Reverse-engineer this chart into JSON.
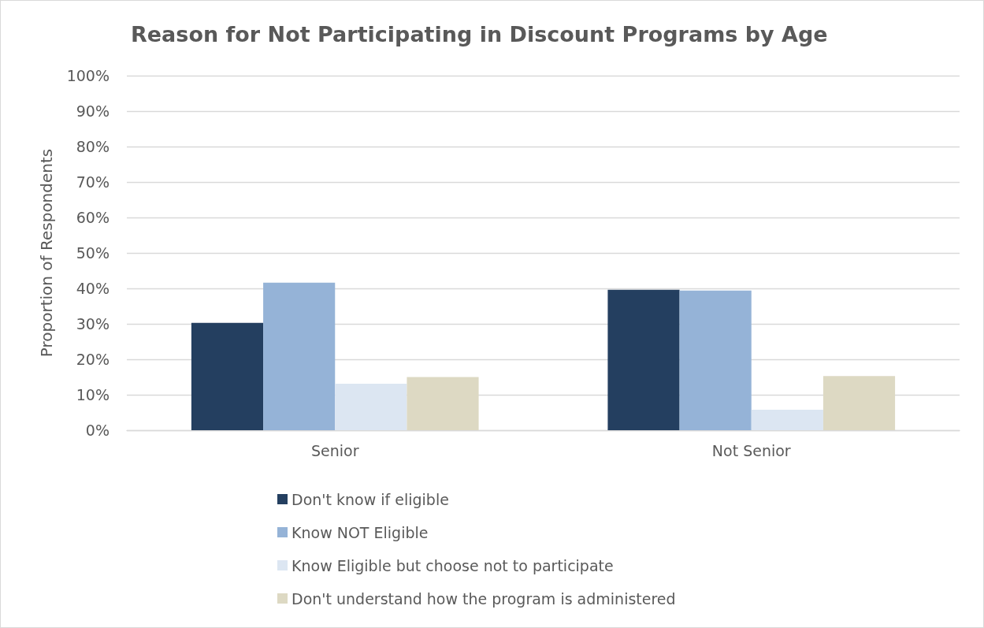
{
  "chart_data": {
    "type": "bar",
    "title": "Reason for Not Participating in Discount Programs by Age",
    "ylabel": "Proportion of Respondents",
    "categories": [
      "Senior",
      "Not Senior"
    ],
    "series": [
      {
        "name": "Don't know if eligible",
        "color": "#243f60",
        "values": [
          30.3,
          39.6
        ]
      },
      {
        "name": "Know NOT Eligible",
        "color": "#95b3d7",
        "values": [
          41.6,
          39.4
        ]
      },
      {
        "name": "Know Eligible but choose not to participate",
        "color": "#dce6f2",
        "values": [
          13.1,
          5.8
        ]
      },
      {
        "name": "Don't understand how the program is administered",
        "color": "#ddd9c3",
        "values": [
          15.0,
          15.3
        ]
      }
    ],
    "ylim": [
      0,
      100
    ],
    "yticks": [
      {
        "value": 0,
        "label": "0%"
      },
      {
        "value": 10,
        "label": "10%"
      },
      {
        "value": 20,
        "label": "20%"
      },
      {
        "value": 30,
        "label": "30%"
      },
      {
        "value": 40,
        "label": "40%"
      },
      {
        "value": 50,
        "label": "50%"
      },
      {
        "value": 60,
        "label": "60%"
      },
      {
        "value": 70,
        "label": "70%"
      },
      {
        "value": 80,
        "label": "80%"
      },
      {
        "value": 90,
        "label": "90%"
      },
      {
        "value": 100,
        "label": "100%"
      }
    ],
    "grid": "y",
    "legend": "bottom"
  }
}
